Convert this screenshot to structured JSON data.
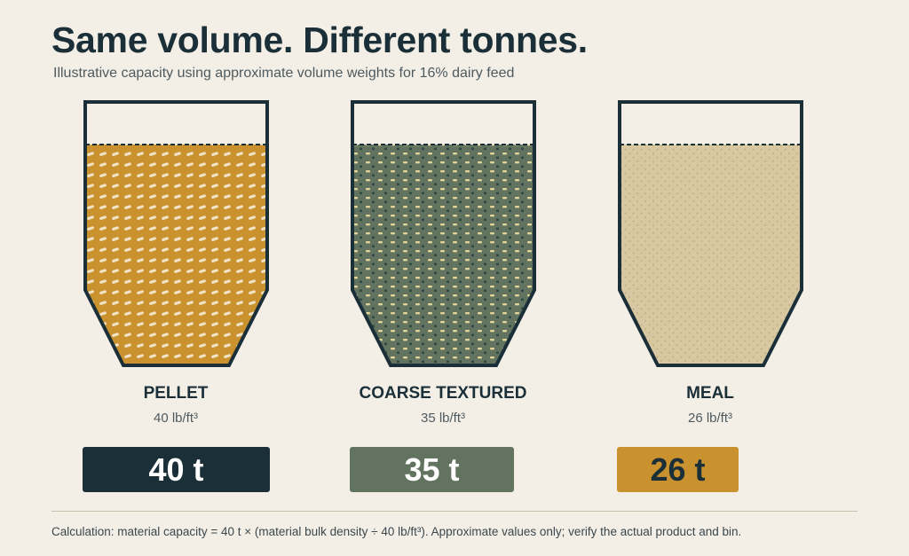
{
  "header": {
    "title": "Same volume. Different tonnes.",
    "subtitle": "Illustrative capacity using approximate volume weights for 16% dairy feed"
  },
  "bins": [
    {
      "label": "PELLET",
      "density": "40 lb/ft³",
      "capacity": "40 t",
      "fill_color": "#c9922f",
      "particle_color": "#f0e2c4",
      "badge_color": "#1b2f38",
      "badge_text_color": "#ffffff",
      "icon": "pellet-texture"
    },
    {
      "label": "COARSE TEXTURED",
      "density": "35 lb/ft³",
      "capacity": "35 t",
      "fill_color": "#627460",
      "particle_color": "#e4d59a",
      "badge_color": "#627460",
      "badge_text_color": "#ffffff",
      "icon": "coarse-texture"
    },
    {
      "label": "MEAL",
      "density": "26 lb/ft³",
      "capacity": "26 t",
      "fill_color": "#d8c8a2",
      "particle_color": "#b9a77c",
      "badge_color": "#c9922f",
      "badge_text_color": "#1b2f38",
      "icon": "meal-texture"
    }
  ],
  "colors": {
    "background": "#f3efe7",
    "outline": "#1b2f38"
  },
  "footer": {
    "note": "Calculation: material capacity = 40 t × (material bulk density ÷ 40 lb/ft³). Approximate values only; verify the actual product and bin."
  }
}
